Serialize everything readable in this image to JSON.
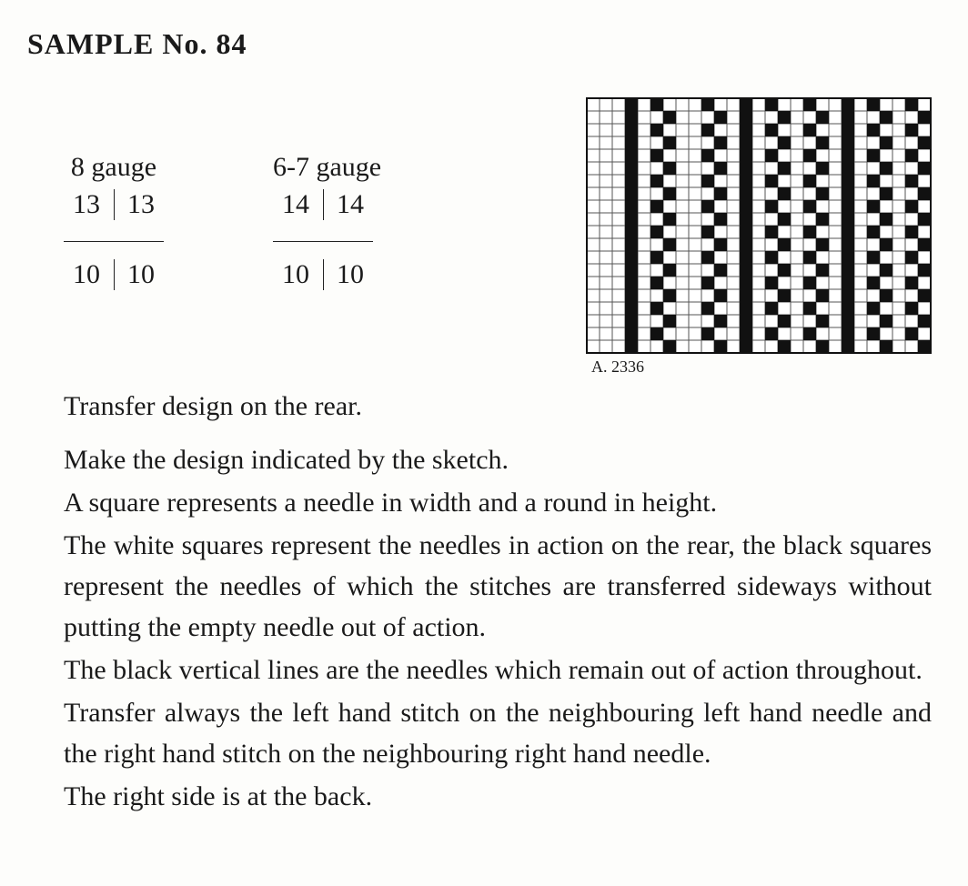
{
  "title": "SAMPLE No. 84",
  "gauge_blocks": [
    {
      "label": "8 gauge",
      "top_left": "13",
      "top_right": "13",
      "bottom_left": "10",
      "bottom_right": "10"
    },
    {
      "label": "6-7 gauge",
      "top_left": "14",
      "top_right": "14",
      "bottom_left": "10",
      "bottom_right": "10"
    }
  ],
  "chart": {
    "caption": "A. 2336",
    "rows": 20,
    "cols": 27,
    "cell": 14,
    "stroke": "#555",
    "bg": "#ffffff",
    "fill": "#111",
    "solid_columns": [
      3,
      12,
      20
    ],
    "checker_pairs": [
      [
        5,
        6
      ],
      [
        9,
        10
      ],
      [
        14,
        15
      ],
      [
        17,
        18
      ],
      [
        22,
        23
      ],
      [
        25,
        26
      ]
    ]
  },
  "paragraphs": [
    "Transfer design on the rear.",
    "Make the design indicated by the sketch.",
    "A square represents a needle in width and a round in height.",
    "The white squares represent the needles in action on the rear, the black squares represent the needles of which the stitches are transferred sideways without putting the empty needle out of action.",
    "The black vertical lines are the needles which remain out of action throughout.",
    "Transfer always the left hand stitch on the neighbouring left hand needle and the right hand stitch on the neighbouring right hand needle.",
    "The right side is at the back."
  ]
}
